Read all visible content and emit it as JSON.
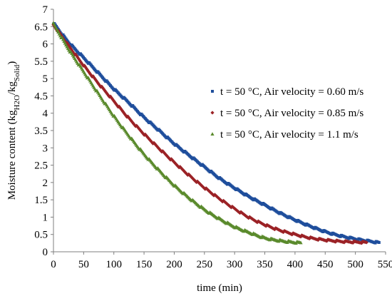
{
  "chart_data": {
    "type": "scatter",
    "xlabel": "time (min)",
    "ylabel": {
      "parts": [
        {
          "text": "Moisture content (kg",
          "sub": false
        },
        {
          "text": "H2O",
          "sub": true
        },
        {
          "text": "/kg",
          "sub": false
        },
        {
          "text": "Solid",
          "sub": true
        },
        {
          "text": ")",
          "sub": false
        }
      ]
    },
    "xlim": [
      0,
      550
    ],
    "ylim": [
      0,
      7
    ],
    "xticks": [
      "0",
      "50",
      "100",
      "150",
      "200",
      "250",
      "300",
      "350",
      "400",
      "450",
      "500",
      "550"
    ],
    "yticks": [
      "0",
      "0.5",
      "1",
      "1.5",
      "2",
      "2.5",
      "3",
      "3.5",
      "4",
      "4.5",
      "5",
      "5.5",
      "6",
      "6.5",
      "7"
    ],
    "grid": false,
    "legend_position": "right",
    "series": [
      {
        "name": "t = 50 °C, Air velocity = 0.60 m/s",
        "marker": "square",
        "color": "#1f4e9c",
        "x": [
          0,
          25,
          50,
          75,
          100,
          125,
          150,
          175,
          200,
          225,
          250,
          275,
          300,
          325,
          350,
          375,
          400,
          425,
          450,
          475,
          500,
          525,
          540
        ],
        "y": [
          6.6,
          6.05,
          5.6,
          5.15,
          4.7,
          4.3,
          3.88,
          3.5,
          3.12,
          2.78,
          2.45,
          2.12,
          1.84,
          1.58,
          1.35,
          1.12,
          0.92,
          0.74,
          0.58,
          0.46,
          0.37,
          0.3,
          0.26
        ]
      },
      {
        "name": "t = 50 °C, Air velocity = 0.85 m/s",
        "marker": "diamond",
        "color": "#9b2226",
        "x": [
          0,
          25,
          50,
          75,
          100,
          125,
          150,
          175,
          200,
          225,
          250,
          275,
          300,
          325,
          350,
          375,
          400,
          425,
          450,
          475,
          500,
          520
        ],
        "y": [
          6.55,
          5.95,
          5.38,
          4.85,
          4.35,
          3.85,
          3.4,
          2.98,
          2.58,
          2.2,
          1.85,
          1.53,
          1.24,
          0.98,
          0.78,
          0.62,
          0.5,
          0.4,
          0.34,
          0.3,
          0.28,
          0.27
        ]
      },
      {
        "name": "t = 50 °C, Air velocity = 1.1 m/s",
        "marker": "triangle",
        "color": "#5a8a2c",
        "x": [
          0,
          25,
          50,
          75,
          100,
          125,
          150,
          175,
          200,
          225,
          250,
          275,
          300,
          325,
          350,
          375,
          400,
          410
        ],
        "y": [
          6.58,
          5.85,
          5.2,
          4.55,
          3.92,
          3.35,
          2.82,
          2.35,
          1.92,
          1.55,
          1.22,
          0.95,
          0.72,
          0.55,
          0.4,
          0.32,
          0.27,
          0.26
        ]
      }
    ]
  }
}
